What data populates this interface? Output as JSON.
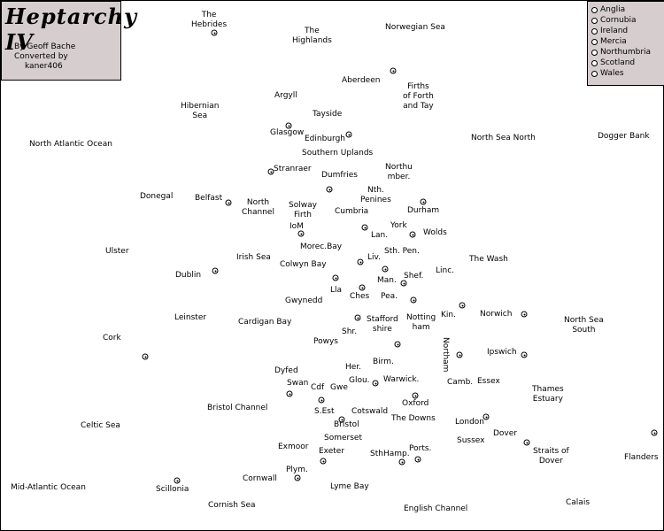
{
  "title": "Heptarchy IV",
  "credits": [
    "By    Geoff Bache",
    "Converted by",
    "kaner406"
  ],
  "legend": [
    "Anglia",
    "Cornubia",
    "Ireland",
    "Mercia",
    "Northumbria",
    "Scotland",
    "Wales"
  ],
  "provinces": {
    "hebrides": "The\nHebrides",
    "highlands": "The\nHighlands",
    "norwegian_sea": "Norwegian Sea",
    "aberdeen": "Aberdeen",
    "firths": "Firths\nof Forth\nand Tay",
    "argyll": "Argyll",
    "hibernian_sea": "Hibernian\nSea",
    "tayside": "Tayside",
    "glasgow": "Glasgow",
    "edinburgh": "Edinburgh",
    "north_atlantic": "North Atlantic Ocean",
    "north_sea_north": "North Sea North",
    "dogger_bank": "Dogger Bank",
    "southern_uplands": "Southern Uplands",
    "stranraer": "Stranraer",
    "dumfries": "Dumfries",
    "northumber": "Northu\nmber.",
    "donegal": "Donegal",
    "belfast": "Belfast",
    "north_channel": "North\nChannel",
    "solway_firth": "Solway\nFirth",
    "nth_penines": "Nth.\nPenines",
    "cumbria": "Cumbria",
    "durham": "Durham",
    "iom": "IoM",
    "york": "York",
    "lan": "Lan.",
    "wolds": "Wolds",
    "morec_bay": "Morec.Bay",
    "ulster": "Ulster",
    "sth_pen": "Sth. Pen.",
    "the_wash": "The Wash",
    "irish_sea": "Irish Sea",
    "liv": "Liv.",
    "colwyn_bay": "Colwyn Bay",
    "dublin": "Dublin",
    "man": "Man.",
    "shef": "Shef.",
    "linc": "Linc.",
    "lla": "Lla",
    "ches": "Ches",
    "pea": "Pea.",
    "gwynedd": "Gwynedd",
    "kin": "Kin.",
    "norwich": "Norwich",
    "leinster": "Leinster",
    "cardigan_bay": "Cardigan Bay",
    "stafford": "Stafford\nshire",
    "nottingham": "Notting\nham",
    "north_sea_south": "North Sea\nSouth",
    "shr": "Shr.",
    "powys": "Powys",
    "cork": "Cork",
    "northam": "Northam",
    "ipswich": "Ipswich",
    "birm": "Birm.",
    "dyfed": "Dyfed",
    "her": "Her.",
    "swan": "Swan",
    "glou": "Glou.",
    "warwick": "Warwick.",
    "cdf": "Cdf",
    "gwe": "Gwe",
    "camb": "Camb.",
    "essex": "Essex",
    "thames": "Thames\nEstuary",
    "oxford": "Oxford",
    "bristol_channel": "Bristol Channel",
    "s_est": "S.Est",
    "cotswald": "Cotswald",
    "the_downs": "The Downs",
    "celtic_sea": "Celtic Sea",
    "bristol": "Bristol",
    "london": "London",
    "dover": "Dover",
    "somerset": "Somerset",
    "sussex": "Sussex",
    "exmoor": "Exmoor",
    "exeter": "Exeter",
    "sthhamp": "SthHamp.",
    "ports": "Ports.",
    "straits": "Straits of\nDover",
    "flanders": "Flanders",
    "plym": "Plym.",
    "cornwall": "Cornwall",
    "mid_atlantic": "Mid-Atlantic Ocean",
    "scillonia": "Scillonia",
    "lyme_bay": "Lyme Bay",
    "cornish_sea": "Cornish Sea",
    "english_channel": "English Channel",
    "calais": "Calais"
  }
}
